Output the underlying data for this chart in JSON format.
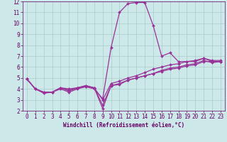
{
  "xlabel": "Windchill (Refroidissement éolien,°C)",
  "x": [
    0,
    1,
    2,
    3,
    4,
    5,
    6,
    7,
    8,
    9,
    10,
    11,
    12,
    13,
    14,
    15,
    16,
    17,
    18,
    19,
    20,
    21,
    22,
    23
  ],
  "lines": [
    [
      4.9,
      4.0,
      3.7,
      3.7,
      4.1,
      4.0,
      4.1,
      4.3,
      4.1,
      2.2,
      4.3,
      4.5,
      4.8,
      5.0,
      5.2,
      5.4,
      5.6,
      5.8,
      5.9,
      6.1,
      6.2,
      6.5,
      6.5,
      6.5
    ],
    [
      4.9,
      4.0,
      3.6,
      3.7,
      4.0,
      3.7,
      4.0,
      4.2,
      4.0,
      3.1,
      7.8,
      11.0,
      11.8,
      11.9,
      11.9,
      9.8,
      7.0,
      7.3,
      6.5,
      6.5,
      6.5,
      6.8,
      6.5,
      6.5
    ],
    [
      4.9,
      4.0,
      3.7,
      3.7,
      4.1,
      3.8,
      4.1,
      4.2,
      4.1,
      3.0,
      4.5,
      4.7,
      5.0,
      5.2,
      5.5,
      5.8,
      6.0,
      6.2,
      6.3,
      6.5,
      6.6,
      6.8,
      6.6,
      6.6
    ],
    [
      4.9,
      4.0,
      3.7,
      3.7,
      4.1,
      3.9,
      4.1,
      4.3,
      4.1,
      2.5,
      4.3,
      4.4,
      4.8,
      5.0,
      5.2,
      5.4,
      5.7,
      5.9,
      6.0,
      6.2,
      6.3,
      6.6,
      6.4,
      6.5
    ]
  ],
  "line_color": "#993399",
  "bg_color": "#cce8e8",
  "grid_color": "#aacccc",
  "ylim": [
    2,
    12
  ],
  "xlim": [
    -0.5,
    23.5
  ],
  "yticks": [
    2,
    3,
    4,
    5,
    6,
    7,
    8,
    9,
    10,
    11,
    12
  ],
  "xticks": [
    0,
    1,
    2,
    3,
    4,
    5,
    6,
    7,
    8,
    9,
    10,
    11,
    12,
    13,
    14,
    15,
    16,
    17,
    18,
    19,
    20,
    21,
    22,
    23
  ],
  "marker": "D",
  "markersize": 2.0,
  "linewidth": 0.9,
  "xlabel_fontsize": 5.5,
  "tick_fontsize": 5.5,
  "xlabel_color": "#660066",
  "tick_color": "#660066"
}
